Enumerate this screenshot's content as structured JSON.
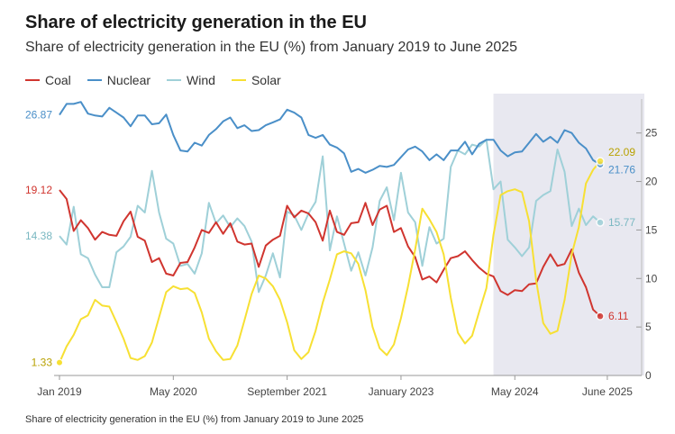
{
  "chart_data": {
    "type": "line",
    "title": "Share of electricity generation in the EU",
    "subtitle": "Share of electricity generation in the EU (%) from January 2019 to June 2025",
    "footnote": "Share of electricity generation in the EU (%) from January 2019 to June 2025",
    "x_start": "2019-01",
    "x_end": "2025-06",
    "x_ticks": [
      {
        "label": "Jan 2019",
        "month": 0
      },
      {
        "label": "May 2020",
        "month": 16
      },
      {
        "label": "September 2021",
        "month": 32
      },
      {
        "label": "January 2023",
        "month": 48
      },
      {
        "label": "May 2024",
        "month": 64
      },
      {
        "label": "June 2025",
        "month": 77
      }
    ],
    "y_ticks": [
      0,
      5,
      10,
      15,
      20,
      25
    ],
    "ylim": [
      0,
      28.5
    ],
    "highlight_start_month": 61,
    "colors": {
      "coal": "#d0352f",
      "nuclear": "#4a8fc8",
      "wind": "#9fd0d8",
      "solar": "#f7e033",
      "highlight": "#e8e8f0"
    },
    "series": [
      {
        "key": "coal",
        "name": "Coal",
        "start_label": "19.12",
        "end_label": "6.11",
        "values": [
          19.12,
          18.2,
          14.9,
          16.0,
          15.2,
          14.0,
          14.8,
          14.5,
          14.4,
          15.9,
          16.9,
          14.3,
          13.9,
          11.7,
          12.1,
          10.5,
          10.3,
          11.6,
          11.7,
          13.2,
          15.0,
          14.7,
          15.8,
          14.6,
          15.7,
          13.8,
          13.5,
          13.6,
          11.2,
          13.4,
          14.0,
          14.4,
          17.5,
          16.3,
          17.0,
          16.7,
          15.8,
          13.9,
          17.0,
          14.8,
          14.5,
          15.7,
          15.8,
          17.8,
          15.5,
          17.1,
          17.5,
          14.8,
          15.2,
          13.3,
          12.2,
          9.9,
          10.2,
          9.6,
          10.9,
          12.1,
          12.3,
          12.8,
          11.9,
          11.1,
          10.5,
          10.2,
          8.7,
          8.3,
          8.8,
          8.7,
          9.4,
          9.5,
          11.2,
          12.5,
          11.3,
          11.5,
          13.0,
          10.6,
          9.1,
          6.8,
          6.11
        ]
      },
      {
        "key": "nuclear",
        "name": "Nuclear",
        "start_label": "26.87",
        "end_label": "21.76",
        "values": [
          26.87,
          28.0,
          28.0,
          28.2,
          27.0,
          26.8,
          26.7,
          27.6,
          27.1,
          26.6,
          25.7,
          26.8,
          26.8,
          25.9,
          26.0,
          26.9,
          24.8,
          23.2,
          23.1,
          24.0,
          23.7,
          24.8,
          25.4,
          26.2,
          26.6,
          25.5,
          25.8,
          25.2,
          25.3,
          25.8,
          26.1,
          26.4,
          27.4,
          27.1,
          26.6,
          24.8,
          24.5,
          24.8,
          23.8,
          23.5,
          22.9,
          21.0,
          21.3,
          20.9,
          21.2,
          21.6,
          21.5,
          21.7,
          22.5,
          23.3,
          23.6,
          23.1,
          22.2,
          22.8,
          22.2,
          23.2,
          23.2,
          24.1,
          22.8,
          23.9,
          24.3,
          24.3,
          23.2,
          22.6,
          23.0,
          23.1,
          24.0,
          24.9,
          24.1,
          24.6,
          24.0,
          25.3,
          25.0,
          24.0,
          23.4,
          22.2,
          21.76
        ]
      },
      {
        "key": "wind",
        "name": "Wind",
        "start_label": "14.38",
        "end_label": "15.77",
        "values": [
          14.38,
          13.5,
          17.4,
          12.5,
          12.1,
          10.4,
          9.1,
          9.1,
          12.7,
          13.3,
          14.3,
          17.5,
          16.8,
          21.1,
          16.8,
          14.1,
          13.6,
          11.3,
          11.5,
          10.5,
          12.6,
          17.8,
          15.7,
          16.5,
          15.3,
          16.2,
          15.4,
          13.8,
          8.6,
          10.3,
          12.6,
          10.1,
          16.9,
          16.5,
          15.0,
          16.7,
          17.9,
          22.6,
          12.9,
          16.4,
          13.6,
          10.8,
          12.7,
          10.3,
          13.2,
          18.0,
          19.4,
          16.0,
          20.9,
          16.8,
          15.8,
          11.3,
          15.3,
          13.6,
          14.1,
          21.5,
          23.2,
          22.8,
          23.8,
          23.6,
          24.3,
          19.2,
          20.0,
          14.0,
          13.2,
          12.3,
          13.2,
          18.0,
          18.6,
          19.0,
          23.3,
          21.0,
          15.4,
          17.2,
          15.5,
          16.4,
          15.77
        ]
      },
      {
        "key": "solar",
        "name": "Solar",
        "start_label": "1.33",
        "end_label": "22.09",
        "values": [
          1.33,
          3.0,
          4.2,
          5.8,
          6.2,
          7.8,
          7.2,
          7.1,
          5.5,
          3.8,
          1.8,
          1.6,
          2.0,
          3.4,
          6.0,
          8.6,
          9.2,
          8.9,
          9.0,
          8.5,
          6.5,
          3.8,
          2.5,
          1.6,
          1.7,
          3.1,
          5.7,
          8.4,
          10.3,
          10.0,
          9.2,
          7.8,
          5.5,
          2.6,
          1.7,
          2.4,
          4.6,
          7.5,
          9.9,
          12.5,
          12.8,
          12.6,
          11.5,
          8.8,
          5.0,
          2.8,
          2.1,
          3.2,
          5.9,
          9.2,
          13.0,
          17.2,
          16.1,
          14.8,
          12.5,
          8.0,
          4.4,
          3.3,
          4.1,
          6.6,
          9.0,
          14.5,
          18.6,
          19.0,
          19.2,
          18.9,
          15.9,
          9.8,
          5.4,
          4.3,
          4.6,
          7.8,
          12.5,
          15.3,
          19.8,
          21.2,
          22.09
        ]
      }
    ]
  }
}
